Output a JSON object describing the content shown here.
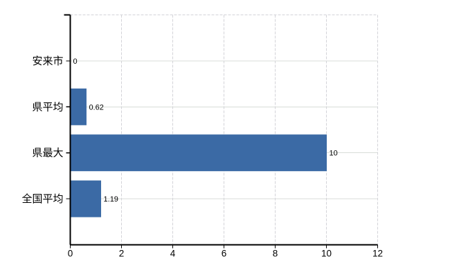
{
  "chart_data": {
    "type": "bar",
    "orientation": "horizontal",
    "categories": [
      "安来市",
      "県平均",
      "県最大",
      "全国平均"
    ],
    "values": [
      0,
      0.62,
      10,
      1.19
    ],
    "value_labels": [
      "0",
      "0.62",
      "10",
      "1.19"
    ],
    "x_ticks": [
      0,
      2,
      4,
      6,
      8,
      10,
      12
    ],
    "x_tick_labels": [
      "0",
      "2",
      "4",
      "6",
      "8",
      "10",
      "12"
    ],
    "xlim": [
      0,
      12
    ],
    "grid": true,
    "legend": false,
    "colors": {
      "bar": "#3b6aa5",
      "axis": "#000000",
      "gridline_horizontal": "#d8ddd8",
      "gridline_vertical": "#d3d3d8",
      "text": "#000000",
      "background": "#ffffff"
    }
  }
}
